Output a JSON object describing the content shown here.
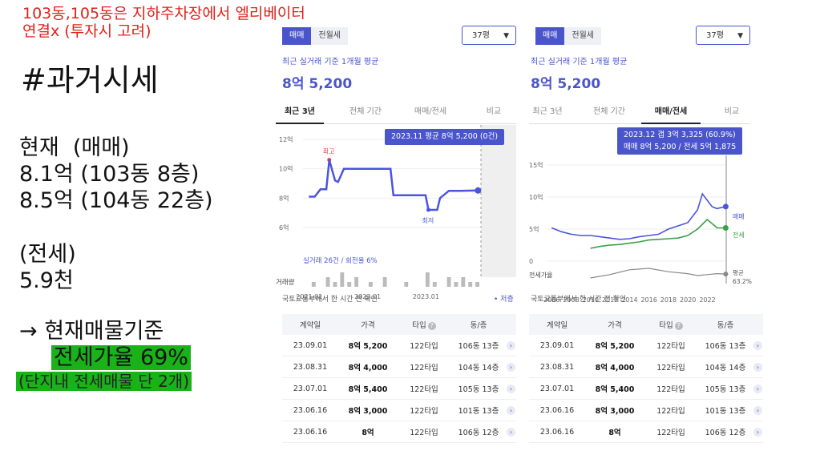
{
  "slide": {
    "note_line1": "103동,105동은 지하주차장에서 엘리베이터",
    "note_line2": "연결x (투자시 고려)",
    "heading": "#과거시세",
    "current_label": "현재  (매매)",
    "current_1": "8.1억 (103동 8층)",
    "current_2": "8.5억 (104동 22층)",
    "jeonse_label": "(전세)",
    "jeonse_value": "5.9천",
    "arrow_line": "→ 현재매물기준",
    "ratio_line": "전세가율 69%",
    "small_line": "(단지내 전세매물 단 2개)"
  },
  "panel_left": {
    "seg_sale": "매매",
    "seg_rent": "전월세",
    "size": "37평",
    "subtitle": "최근 실거래 기준 1개월 평균",
    "price": "8억 5,200",
    "tabs": [
      "최근 3년",
      "전체 기간",
      "매매/전세",
      "비교"
    ],
    "active_tab": 0,
    "tooltip": "2023.11 평균 8억 5,200 (0건)",
    "deal_info": "실거래 26건 / 회전율 6%",
    "label_high": "최고",
    "label_low": "최저",
    "volume_label": "거래량",
    "source": "국토교통부에서 한 시간 전 확인",
    "legend": "• 저층"
  },
  "panel_right": {
    "seg_sale": "매매",
    "seg_rent": "전월세",
    "size": "37평",
    "subtitle": "최근 실거래 기준 1개월 평균",
    "price": "8억 5,200",
    "tabs": [
      "최근 3년",
      "전체 기간",
      "매매/전세",
      "비교"
    ],
    "active_tab": 2,
    "tooltip_line1": "2023.12  갭 3억 3,325 (60.9%)",
    "tooltip_line2": "매매 8억 5,200 / 전세 5억 1,875",
    "legend_sale": "매매",
    "legend_jeonse": "전세",
    "ratio_label_a": "평균",
    "ratio_label_b": "63.2%",
    "ratio_axis": "전세가율",
    "source": "국토교통부에서 한 시간 전 확인"
  },
  "table_headers": [
    "계약일",
    "가격",
    "타입",
    "동/층"
  ],
  "table_rows": [
    [
      "23.09.01",
      "8억 5,200",
      "122타입",
      "106동 13층"
    ],
    [
      "23.08.31",
      "8억 4,000",
      "122타입",
      "104동 14층"
    ],
    [
      "23.07.01",
      "8억 5,400",
      "122타입",
      "105동 13층"
    ],
    [
      "23.06.16",
      "8억 3,000",
      "122타입",
      "101동 13층"
    ],
    [
      "23.06.16",
      "8억",
      "122타입",
      "106동 12층"
    ]
  ],
  "chart_data": [
    {
      "type": "line",
      "title": "",
      "y_ticks": [
        "12억",
        "10억",
        "8억",
        "6억"
      ],
      "ylim": [
        6,
        12
      ],
      "x_ticks": [
        "2021.01",
        "2022.01",
        "2023.01"
      ],
      "series": [
        {
          "name": "",
          "x": [
            2021.0,
            2021.1,
            2021.2,
            2021.3,
            2021.35,
            2021.45,
            2021.5,
            2021.6,
            2021.75,
            2022.0,
            2022.2,
            2022.4,
            2022.45,
            2022.6,
            2022.8,
            2023.0,
            2023.05,
            2023.2,
            2023.25,
            2023.4,
            2023.6,
            2023.9
          ],
          "values": [
            8.1,
            8.1,
            8.6,
            8.6,
            10.6,
            9.2,
            9.1,
            10.0,
            10.0,
            10.0,
            10.0,
            10.0,
            8.2,
            8.2,
            8.2,
            8.2,
            7.2,
            7.2,
            8.0,
            8.5,
            8.5,
            8.52
          ]
        }
      ],
      "volume": [
        0,
        1,
        0,
        2,
        1,
        3,
        1,
        2,
        0,
        1,
        0,
        2,
        0,
        0,
        1,
        0,
        0,
        3,
        1,
        0,
        2,
        1,
        2,
        1,
        1
      ]
    },
    {
      "type": "line",
      "title": "",
      "y_ticks": [
        "15억",
        "10억",
        "5억",
        "0"
      ],
      "ylim": [
        0,
        15
      ],
      "x_ticks": [
        "2006",
        "2008",
        "2010",
        "2012",
        "2014",
        "2016",
        "2018",
        "2020",
        "2022"
      ],
      "series": [
        {
          "name": "매매",
          "x": [
            2006,
            2007,
            2008,
            2009,
            2010,
            2011,
            2012,
            2013,
            2014,
            2015,
            2016,
            2017,
            2018,
            2019,
            2020,
            2021,
            2021.5,
            2022,
            2022.5,
            2023,
            2023.9
          ],
          "values": [
            5.2,
            4.6,
            4.2,
            4.0,
            4.0,
            3.8,
            3.6,
            3.4,
            3.5,
            3.8,
            4.0,
            4.2,
            5.0,
            5.5,
            6.0,
            8.0,
            10.5,
            9.5,
            8.5,
            8.2,
            8.52
          ]
        },
        {
          "name": "전세",
          "x": [
            2010,
            2011,
            2012,
            2013,
            2014,
            2015,
            2016,
            2017,
            2018,
            2019,
            2020,
            2021,
            2022,
            2023,
            2023.9
          ],
          "values": [
            2.0,
            2.3,
            2.5,
            2.6,
            2.8,
            3.0,
            3.3,
            3.4,
            3.5,
            3.6,
            4.0,
            5.0,
            6.5,
            5.2,
            5.19
          ]
        },
        {
          "name": "전세가율",
          "x": [
            2010,
            2012,
            2014,
            2016,
            2018,
            2020,
            2021,
            2022,
            2023,
            2023.9
          ],
          "values": [
            55,
            62,
            72,
            75,
            68,
            64,
            60,
            62,
            64,
            63.2
          ]
        }
      ]
    }
  ]
}
